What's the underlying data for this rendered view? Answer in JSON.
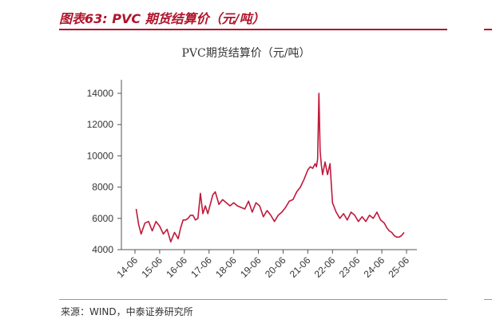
{
  "header": {
    "title": "图表63: PVC 期货结算价（元/吨）"
  },
  "source": "来源：WIND，中泰证券研究所",
  "colors": {
    "accent": "#b0152c",
    "line": "#c0183a"
  },
  "chart_data": {
    "type": "line",
    "title": "PVC期货结算价（元/吨）",
    "xlabel": "",
    "ylabel": "",
    "ylim": [
      4000,
      14000
    ],
    "yticks": [
      4000,
      6000,
      8000,
      10000,
      12000,
      14000
    ],
    "xlim": [
      0,
      11
    ],
    "xticks": [
      "14-06",
      "15-06",
      "16-06",
      "17-06",
      "18-06",
      "19-06",
      "20-06",
      "21-06",
      "22-06",
      "23-06",
      "24-06",
      "25-06"
    ],
    "grid": false,
    "legend": "none",
    "series": [
      {
        "x": [
          0.05,
          0.15,
          0.25,
          0.4,
          0.55,
          0.7,
          0.85,
          1.0,
          1.15,
          1.3,
          1.45,
          1.6,
          1.75,
          1.85,
          1.95,
          2.05,
          2.15,
          2.25,
          2.35,
          2.45,
          2.55,
          2.65,
          2.75,
          2.85,
          2.95,
          3.05,
          3.15,
          3.25,
          3.4,
          3.55,
          3.7,
          3.85,
          4.0,
          4.15,
          4.3,
          4.45,
          4.6,
          4.75,
          4.9,
          5.05,
          5.2,
          5.35,
          5.5,
          5.65,
          5.8,
          5.95,
          6.1,
          6.25,
          6.4,
          6.55,
          6.7,
          6.85,
          7.0,
          7.1,
          7.2,
          7.3,
          7.35,
          7.4,
          7.45,
          7.5,
          7.55,
          7.6,
          7.7,
          7.8,
          7.9,
          8.0,
          8.15,
          8.3,
          8.45,
          8.6,
          8.75,
          8.9,
          9.05,
          9.2,
          9.35,
          9.5,
          9.65,
          9.8,
          9.95,
          10.1,
          10.2,
          10.3,
          10.4,
          10.5,
          10.6,
          10.7,
          10.8,
          10.9
        ],
        "y": [
          6600,
          5600,
          5000,
          5700,
          5800,
          5200,
          5800,
          5500,
          5000,
          5300,
          4500,
          5100,
          4700,
          5400,
          5900,
          5900,
          6000,
          6200,
          6200,
          5900,
          6000,
          7600,
          6300,
          6800,
          6300,
          6900,
          7500,
          7700,
          6900,
          7200,
          7000,
          6800,
          7000,
          6800,
          6700,
          6600,
          7100,
          6400,
          7000,
          6800,
          6100,
          6500,
          6200,
          5800,
          6200,
          6400,
          6700,
          7100,
          7200,
          7700,
          8000,
          8500,
          9100,
          9300,
          9200,
          9500,
          9300,
          9800,
          14000,
          10300,
          9400,
          8800,
          9600,
          8800,
          9500,
          7000,
          6400,
          6000,
          6300,
          5900,
          6400,
          6200,
          5800,
          6100,
          5800,
          6200,
          6000,
          6400,
          5900,
          5700,
          5400,
          5200,
          5100,
          4900,
          4800,
          4800,
          4900,
          5100
        ]
      }
    ]
  }
}
